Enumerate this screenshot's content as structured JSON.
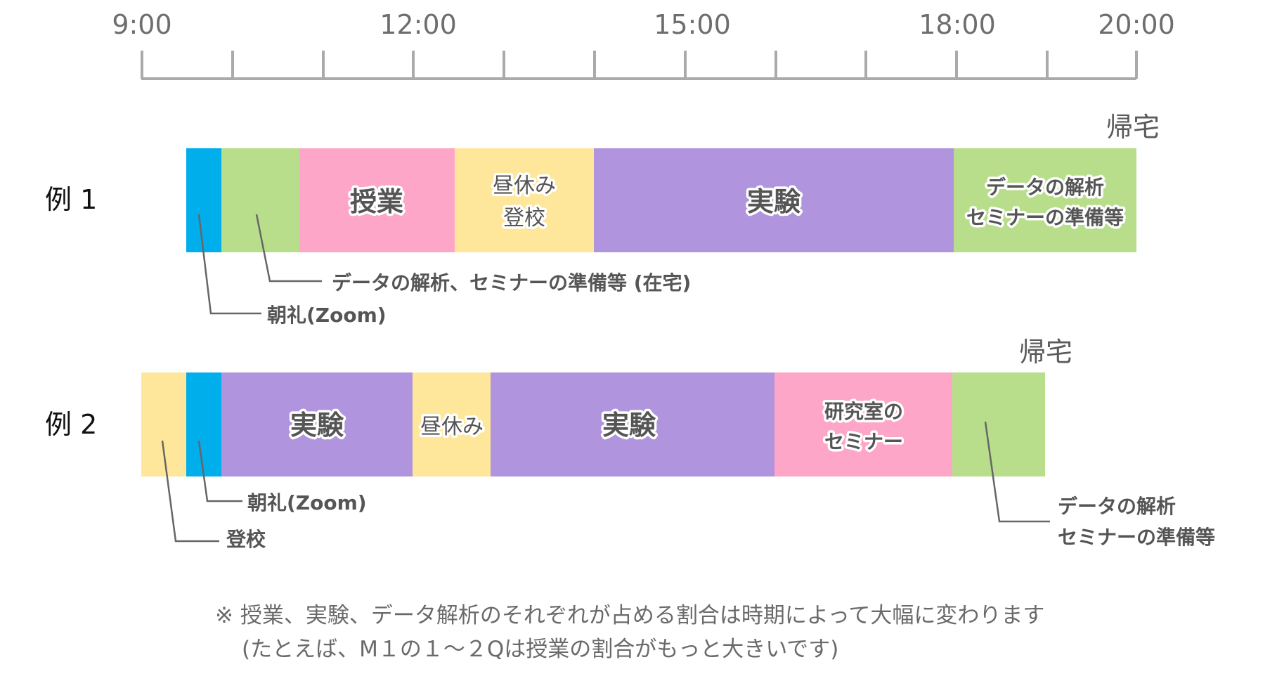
{
  "axis": {
    "labels": [
      "9:00",
      "12:00",
      "15:00",
      "18:00",
      "20:00"
    ]
  },
  "colors": {
    "blue": "#00aeeb",
    "green": "#b8de8c",
    "pink": "#fea6c8",
    "yellow": "#fee79b",
    "purple": "#b094de",
    "axis": "#aaaaaa"
  },
  "example1": {
    "label": "例 1",
    "home": "帰宅",
    "seg_class": "授業",
    "seg_lunch_line1": "昼休み",
    "seg_lunch_line2": "登校",
    "seg_experiment": "実験",
    "seg_analysis_line1": "データの解析",
    "seg_analysis_line2": "セミナーの準備等",
    "callout_home_work": "データの解析、セミナーの準備等 (在宅)",
    "callout_morning": "朝礼(Zoom)"
  },
  "example2": {
    "label": "例 2",
    "home": "帰宅",
    "seg_experiment_a": "実験",
    "seg_lunch": "昼休み",
    "seg_experiment_b": "実験",
    "seg_seminar_line1": "研究室の",
    "seg_seminar_line2": "セミナー",
    "callout_morning": "朝礼(Zoom)",
    "callout_arrive": "登校",
    "callout_analysis_line1": "データの解析",
    "callout_analysis_line2": "セミナーの準備等"
  },
  "note": {
    "line1": "※ 授業、実験、データ解析のそれぞれが占める割合は時期によって大幅に変わります",
    "line2": "(たとえば、M１の１～２Qは授業の割合がもっと大きいです)"
  }
}
